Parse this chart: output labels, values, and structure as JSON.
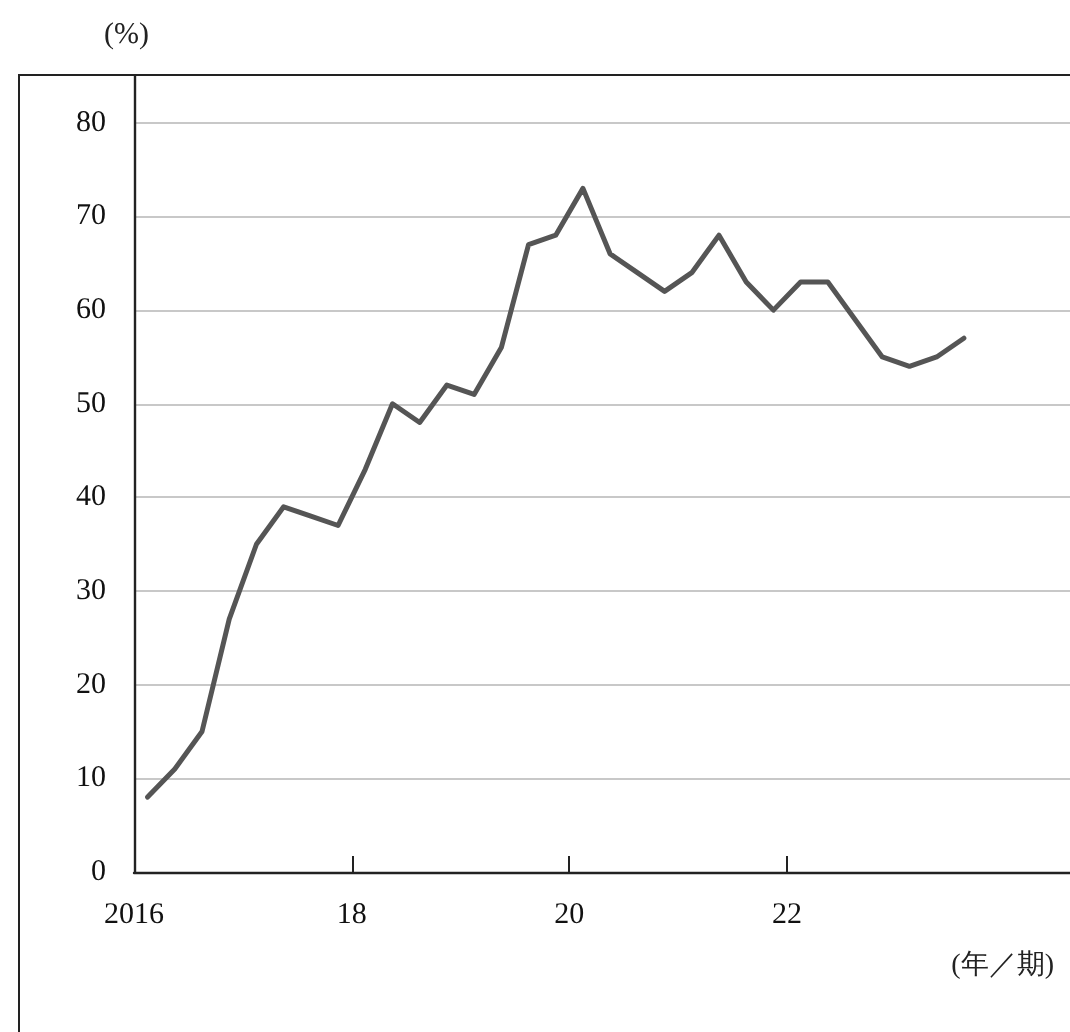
{
  "chart_data": {
    "type": "line",
    "ylabel": "(%)",
    "xlabel": "(年／期)",
    "x": [
      2016.125,
      2016.375,
      2016.625,
      2016.875,
      2017.125,
      2017.375,
      2017.625,
      2017.875,
      2018.125,
      2018.375,
      2018.625,
      2018.875,
      2019.125,
      2019.375,
      2019.625,
      2019.875,
      2020.125,
      2020.375,
      2020.625,
      2020.875,
      2021.125,
      2021.375,
      2021.625,
      2021.875,
      2022.125,
      2022.375,
      2022.625,
      2022.875,
      2023.125,
      2023.375,
      2023.625
    ],
    "series": [
      {
        "color": "#555555",
        "values": [
          8,
          11,
          15,
          27,
          35,
          39,
          38,
          37,
          43,
          50,
          48,
          52,
          51,
          56,
          67,
          68,
          73,
          66,
          64,
          62,
          64,
          68,
          63,
          60,
          63,
          63,
          59,
          55,
          54,
          55,
          57
        ]
      }
    ],
    "xlim": [
      2016,
      2024.6
    ],
    "xticks": [
      {
        "value": 2016,
        "label": "2016"
      },
      {
        "value": 2018,
        "label": "18"
      },
      {
        "value": 2020,
        "label": "20"
      },
      {
        "value": 2022,
        "label": "22"
      }
    ],
    "ylim": [
      0,
      85
    ],
    "yticks": [
      0,
      10,
      20,
      30,
      40,
      50,
      60,
      70,
      80
    ],
    "grid": "y",
    "marker": "none",
    "line_style": "solid"
  }
}
